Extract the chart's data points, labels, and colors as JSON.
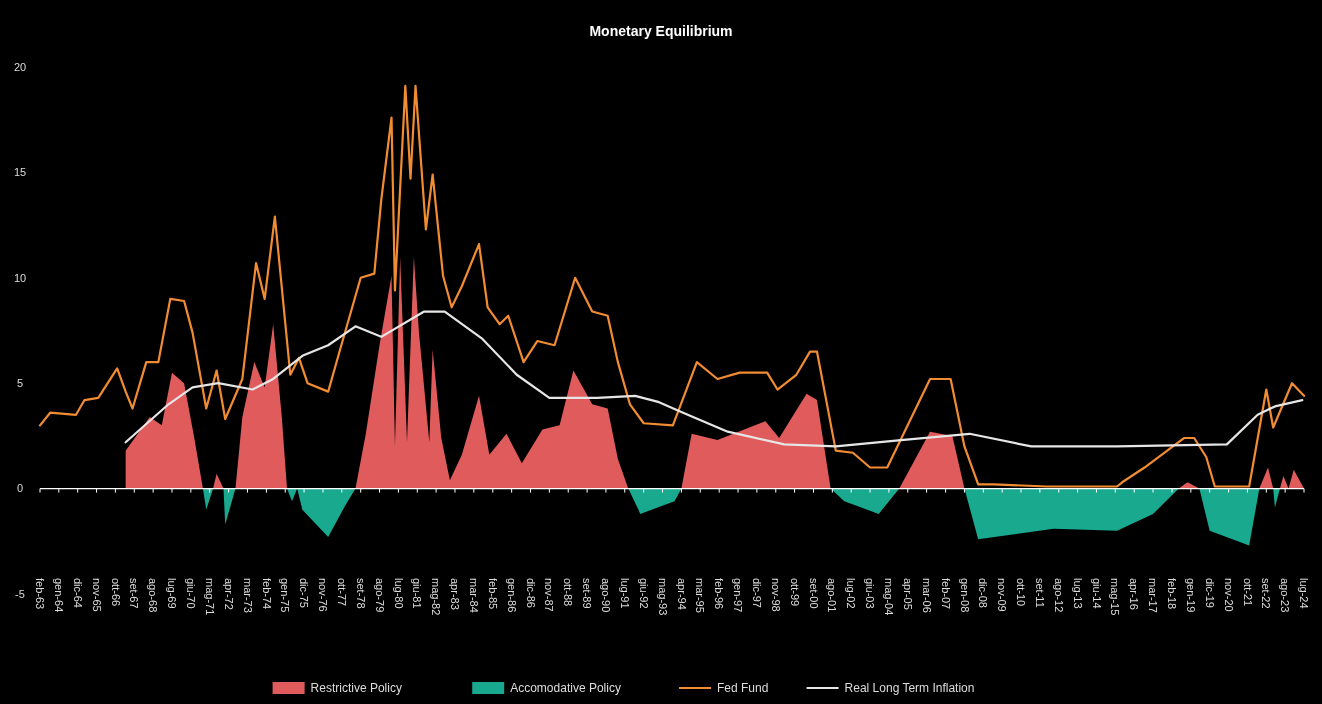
{
  "chart_data": {
    "type": "line",
    "title": "Monetary Equilibrium",
    "xlim": [
      "1963-02",
      "2024-07"
    ],
    "ylim": [
      -5,
      20
    ],
    "yticks": [
      -5,
      0,
      5,
      10,
      15,
      20
    ],
    "grid": false,
    "ref_lines": [
      {
        "axis": "y",
        "value": 0,
        "color": "#ffffff"
      }
    ],
    "legend": "bottom",
    "tick_labels": "xy",
    "xticks": [
      {
        "value": "1963-02",
        "label": "feb-63"
      },
      {
        "value": "1964-01",
        "label": "gen-64"
      },
      {
        "value": "1964-12",
        "label": "dic-64"
      },
      {
        "value": "1965-11",
        "label": "nov-65"
      },
      {
        "value": "1966-10",
        "label": "ott-66"
      },
      {
        "value": "1967-09",
        "label": "set-67"
      },
      {
        "value": "1968-08",
        "label": "ago-68"
      },
      {
        "value": "1969-07",
        "label": "lug-69"
      },
      {
        "value": "1970-06",
        "label": "giu-70"
      },
      {
        "value": "1971-05",
        "label": "mag-71"
      },
      {
        "value": "1972-04",
        "label": "apr-72"
      },
      {
        "value": "1973-03",
        "label": "mar-73"
      },
      {
        "value": "1974-02",
        "label": "feb-74"
      },
      {
        "value": "1975-01",
        "label": "gen-75"
      },
      {
        "value": "1975-12",
        "label": "dic-75"
      },
      {
        "value": "1976-11",
        "label": "nov-76"
      },
      {
        "value": "1977-10",
        "label": "ott-77"
      },
      {
        "value": "1978-09",
        "label": "set-78"
      },
      {
        "value": "1979-08",
        "label": "ago-79"
      },
      {
        "value": "1980-07",
        "label": "lug-80"
      },
      {
        "value": "1981-06",
        "label": "giu-81"
      },
      {
        "value": "1982-05",
        "label": "mag-82"
      },
      {
        "value": "1983-04",
        "label": "apr-83"
      },
      {
        "value": "1984-03",
        "label": "mar-84"
      },
      {
        "value": "1985-02",
        "label": "feb-85"
      },
      {
        "value": "1986-01",
        "label": "gen-86"
      },
      {
        "value": "1986-12",
        "label": "dic-86"
      },
      {
        "value": "1987-11",
        "label": "nov-87"
      },
      {
        "value": "1988-10",
        "label": "ott-88"
      },
      {
        "value": "1989-09",
        "label": "set-89"
      },
      {
        "value": "1990-08",
        "label": "ago-90"
      },
      {
        "value": "1991-07",
        "label": "lug-91"
      },
      {
        "value": "1992-06",
        "label": "giu-92"
      },
      {
        "value": "1993-05",
        "label": "mag-93"
      },
      {
        "value": "1994-04",
        "label": "apr-94"
      },
      {
        "value": "1995-03",
        "label": "mar-95"
      },
      {
        "value": "1996-02",
        "label": "feb-96"
      },
      {
        "value": "1997-01",
        "label": "gen-97"
      },
      {
        "value": "1997-12",
        "label": "dic-97"
      },
      {
        "value": "1998-11",
        "label": "nov-98"
      },
      {
        "value": "1999-10",
        "label": "ott-99"
      },
      {
        "value": "2000-09",
        "label": "set-00"
      },
      {
        "value": "2001-08",
        "label": "ago-01"
      },
      {
        "value": "2002-07",
        "label": "lug-02"
      },
      {
        "value": "2003-06",
        "label": "giu-03"
      },
      {
        "value": "2004-05",
        "label": "mag-04"
      },
      {
        "value": "2005-04",
        "label": "apr-05"
      },
      {
        "value": "2006-03",
        "label": "mar-06"
      },
      {
        "value": "2007-02",
        "label": "feb-07"
      },
      {
        "value": "2008-01",
        "label": "gen-08"
      },
      {
        "value": "2008-12",
        "label": "dic-08"
      },
      {
        "value": "2009-11",
        "label": "nov-09"
      },
      {
        "value": "2010-10",
        "label": "ott-10"
      },
      {
        "value": "2011-09",
        "label": "set-11"
      },
      {
        "value": "2012-08",
        "label": "ago-12"
      },
      {
        "value": "2013-07",
        "label": "lug-13"
      },
      {
        "value": "2014-06",
        "label": "giu-14"
      },
      {
        "value": "2015-05",
        "label": "mag-15"
      },
      {
        "value": "2016-04",
        "label": "apr-16"
      },
      {
        "value": "2017-03",
        "label": "mar-17"
      },
      {
        "value": "2018-02",
        "label": "feb-18"
      },
      {
        "value": "2019-01",
        "label": "gen-19"
      },
      {
        "value": "2019-12",
        "label": "dic-19"
      },
      {
        "value": "2020-11",
        "label": "nov-20"
      },
      {
        "value": "2021-10",
        "label": "ott-21"
      },
      {
        "value": "2022-09",
        "label": "set-22"
      },
      {
        "value": "2023-08",
        "label": "ago-23"
      },
      {
        "value": "2024-07",
        "label": "lug-24"
      }
    ],
    "series": [
      {
        "name": "Restrictive Policy",
        "type": "area",
        "color": "#e05c5c",
        "x": [
          "1967-04",
          "1968-06",
          "1969-01",
          "1969-07",
          "1970-02",
          "1970-08",
          "1971-01",
          "1971-07",
          "1971-09",
          "1972-01",
          "1972-08",
          "1972-12",
          "1973-07",
          "1974-01",
          "1974-06",
          "1974-11",
          "1975-02",
          "1978-06",
          "1978-12",
          "1979-08",
          "1980-03",
          "1980-05",
          "1980-08",
          "1980-12",
          "1981-04",
          "1981-07",
          "1982-01",
          "1982-03",
          "1982-08",
          "1983-01",
          "1983-08",
          "1984-06",
          "1984-12",
          "1985-10",
          "1986-07",
          "1987-07",
          "1988-05",
          "1989-01",
          "1989-12",
          "1990-09",
          "1991-03",
          "1991-09",
          "1994-04",
          "1994-10",
          "1996-01",
          "1998-05",
          "1999-01",
          "2000-05",
          "2000-11",
          "2001-07",
          "2004-11",
          "2006-05",
          "2007-06",
          "2008-01",
          "2018-06",
          "2018-11",
          "2019-06",
          "2022-05",
          "2022-10",
          "2023-01",
          "2023-05",
          "2023-07",
          "2023-10",
          "2024-01",
          "2024-07"
        ],
        "values": [
          1.8,
          3.4,
          3.0,
          5.5,
          5.0,
          2.4,
          0,
          0,
          0.7,
          0,
          0,
          3.4,
          6.0,
          4.8,
          7.8,
          3.4,
          0,
          0,
          2.6,
          6.8,
          10.1,
          2.0,
          11.0,
          2.2,
          11.0,
          7.4,
          2.2,
          6.6,
          2.4,
          0.4,
          1.6,
          4.4,
          1.6,
          2.6,
          1.2,
          2.8,
          3.0,
          5.6,
          4.0,
          3.8,
          1.4,
          0,
          0,
          2.6,
          2.3,
          3.2,
          2.4,
          4.5,
          4.2,
          0,
          0,
          2.7,
          2.5,
          0,
          0,
          0.3,
          0,
          0,
          1.0,
          0,
          0,
          0.6,
          0,
          0.9,
          0
        ]
      },
      {
        "name": "Accomodative Policy",
        "type": "area",
        "color": "#18a98f",
        "x": [
          "1971-01",
          "1971-03",
          "1971-07",
          "1972-01",
          "1972-02",
          "1972-08",
          "1975-02",
          "1975-05",
          "1975-08",
          "1975-11",
          "1977-02",
          "1977-12",
          "1978-06",
          "1991-09",
          "1992-03",
          "1992-04",
          "1993-12",
          "1994-04",
          "2001-07",
          "2002-03",
          "2003-11",
          "2004-11",
          "2008-01",
          "2008-09",
          "2012-05",
          "2015-06",
          "2017-03",
          "2018-06",
          "2019-06",
          "2019-12",
          "2021-11",
          "2022-05",
          "2023-01",
          "2023-02",
          "2023-05"
        ],
        "values": [
          0,
          -1.0,
          0,
          0,
          -1.7,
          0,
          0,
          -0.6,
          0,
          -1.0,
          -2.3,
          -0.8,
          0,
          0,
          -1.0,
          -1.2,
          -0.6,
          0,
          0,
          -0.6,
          -1.2,
          0,
          0,
          -2.4,
          -1.9,
          -2.0,
          -1.2,
          0,
          0,
          -2.0,
          -2.7,
          0,
          0,
          -0.9,
          0
        ]
      },
      {
        "name": "Fed Fund",
        "type": "line",
        "color": "#f28c32",
        "x": [
          "1963-02",
          "1963-08",
          "1964-11",
          "1965-04",
          "1965-12",
          "1966-11",
          "1967-04",
          "1967-08",
          "1968-04",
          "1968-11",
          "1969-06",
          "1970-02",
          "1970-07",
          "1971-03",
          "1971-09",
          "1972-02",
          "1972-12",
          "1973-08",
          "1974-01",
          "1974-07",
          "1975-04",
          "1975-09",
          "1976-02",
          "1977-02",
          "1977-09",
          "1978-09",
          "1979-05",
          "1979-09",
          "1980-03",
          "1980-05",
          "1980-11",
          "1981-02",
          "1981-05",
          "1981-11",
          "1982-03",
          "1982-09",
          "1983-02",
          "1983-08",
          "1984-06",
          "1984-11",
          "1985-06",
          "1985-11",
          "1986-08",
          "1987-04",
          "1988-02",
          "1989-02",
          "1989-12",
          "1990-09",
          "1991-03",
          "1991-10",
          "1992-06",
          "1993-11",
          "1995-01",
          "1996-01",
          "1997-02",
          "1998-06",
          "1998-12",
          "1999-11",
          "2000-07",
          "2000-11",
          "2001-10",
          "2002-08",
          "2003-06",
          "2004-04",
          "2006-05",
          "2007-05",
          "2008-01",
          "2008-09",
          "2009-06",
          "2012-01",
          "2015-06",
          "2015-09",
          "2016-10",
          "2018-09",
          "2019-03",
          "2019-10",
          "2020-03",
          "2021-11",
          "2022-09",
          "2023-01",
          "2023-12",
          "2024-07"
        ],
        "values": [
          3.0,
          3.6,
          3.5,
          4.2,
          4.3,
          5.7,
          4.6,
          3.8,
          6.0,
          6.0,
          9.0,
          8.9,
          7.4,
          3.8,
          5.6,
          3.3,
          5.2,
          10.7,
          9.0,
          12.9,
          5.4,
          6.2,
          5.0,
          4.6,
          6.6,
          10.0,
          10.2,
          13.7,
          17.6,
          9.4,
          19.1,
          14.7,
          19.1,
          12.3,
          14.9,
          10.1,
          8.6,
          9.6,
          11.6,
          8.6,
          7.8,
          8.2,
          6.0,
          7.0,
          6.8,
          10.0,
          8.4,
          8.2,
          6.0,
          4.0,
          3.1,
          3.0,
          6.0,
          5.2,
          5.5,
          5.5,
          4.7,
          5.4,
          6.5,
          6.5,
          1.8,
          1.7,
          1.0,
          1.0,
          5.2,
          5.2,
          2.0,
          0.2,
          0.2,
          0.1,
          0.1,
          0.3,
          1.0,
          2.4,
          2.4,
          1.5,
          0.1,
          0.1,
          4.7,
          2.9,
          5.0,
          4.4
        ]
      },
      {
        "name": "Real Long Term Inflation",
        "type": "line",
        "color": "#e6e6e6",
        "x": [
          "1967-04",
          "1969-05",
          "1970-07",
          "1971-10",
          "1973-06",
          "1974-06",
          "1975-11",
          "1977-02",
          "1978-06",
          "1979-09",
          "1981-10",
          "1982-10",
          "1984-08",
          "1986-04",
          "1987-11",
          "1990-03",
          "1992-01",
          "1993-03",
          "1994-05",
          "1996-07",
          "1999-04",
          "2001-10",
          "2004-12",
          "2008-04",
          "2011-04",
          "2015-06",
          "2020-10",
          "2022-04",
          "2023-02",
          "2024-06"
        ],
        "values": [
          2.2,
          4.0,
          4.8,
          5.0,
          4.7,
          5.2,
          6.3,
          6.8,
          7.7,
          7.2,
          8.4,
          8.4,
          7.1,
          5.4,
          4.3,
          4.3,
          4.4,
          4.1,
          3.6,
          2.7,
          2.1,
          2.0,
          2.3,
          2.6,
          2.0,
          2.0,
          2.1,
          3.5,
          3.9,
          4.2
        ]
      }
    ]
  }
}
